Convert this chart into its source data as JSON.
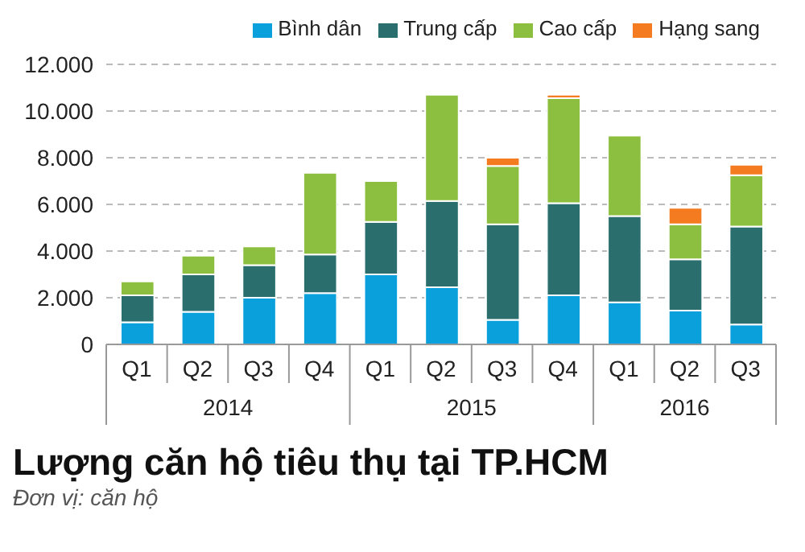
{
  "chart_data": {
    "type": "bar",
    "stacked": true,
    "title": "Lượng căn hộ tiêu thụ tại TP.HCM",
    "subtitle": "Đơn vị: căn hộ",
    "annotations": [
      "2014",
      "2015",
      "2016"
    ],
    "categories": [
      "Q1",
      "Q2",
      "Q3",
      "Q4",
      "Q1",
      "Q2",
      "Q3",
      "Q4",
      "Q1",
      "Q2",
      "Q3"
    ],
    "series": [
      {
        "name": "Bình dân",
        "color": "#0aa0dc",
        "values": [
          950,
          1400,
          2000,
          2200,
          3000,
          2450,
          1050,
          2100,
          1800,
          1450,
          850
        ]
      },
      {
        "name": "Trung cấp",
        "color": "#2a6e6e",
        "values": [
          1150,
          1600,
          1400,
          1650,
          2250,
          3700,
          4100,
          3950,
          3700,
          2200,
          4200
        ]
      },
      {
        "name": "Cao cấp",
        "color": "#8cbf3f",
        "values": [
          600,
          800,
          800,
          3500,
          1750,
          4550,
          2500,
          4500,
          3450,
          1500,
          2200
        ]
      },
      {
        "name": "Hạng sang",
        "color": "#f47b20",
        "values": [
          null,
          null,
          null,
          null,
          null,
          null,
          350,
          150,
          null,
          700,
          450
        ]
      }
    ],
    "ylim": [
      0,
      12000
    ],
    "yticks": [
      0,
      {
        "value": 2000,
        "label": "2.000"
      },
      {
        "value": 4000,
        "label": "4.000"
      },
      {
        "value": 6000,
        "label": "6.000"
      },
      {
        "value": 8000,
        "label": "8.000"
      },
      {
        "value": 10000,
        "label": "10.000"
      },
      {
        "value": 12000,
        "label": "12.000"
      }
    ],
    "grid": "y",
    "legend": "top right"
  }
}
